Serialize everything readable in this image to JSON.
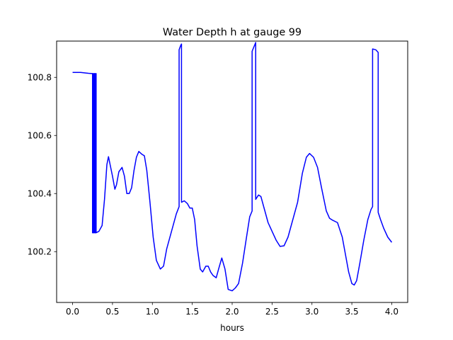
{
  "chart_data": {
    "type": "line",
    "title": "Water Depth h at gauge 99",
    "xlabel": "hours",
    "ylabel": "",
    "xlim": [
      -0.2,
      4.2
    ],
    "ylim": [
      100.025,
      100.925
    ],
    "xticks": [
      0.0,
      0.5,
      1.0,
      1.5,
      2.0,
      2.5,
      3.0,
      3.5,
      4.0
    ],
    "xtick_labels": [
      "0.0",
      "0.5",
      "1.0",
      "1.5",
      "2.0",
      "2.5",
      "3.0",
      "3.5",
      "4.0"
    ],
    "yticks": [
      100.2,
      100.4,
      100.6,
      100.8
    ],
    "ytick_labels": [
      "100.2",
      "100.4",
      "100.6",
      "100.8"
    ],
    "grid": false,
    "legend": "none",
    "series": [
      {
        "color": "#0000ff",
        "points": [
          [
            0.0,
            100.817
          ],
          [
            0.1,
            100.817
          ],
          [
            0.2,
            100.814
          ],
          [
            0.25,
            100.813
          ],
          [
            0.25,
            100.265
          ],
          [
            0.255,
            100.265
          ],
          [
            0.255,
            100.813
          ],
          [
            0.26,
            100.813
          ],
          [
            0.26,
            100.265
          ],
          [
            0.27,
            100.265
          ],
          [
            0.27,
            100.813
          ],
          [
            0.28,
            100.813
          ],
          [
            0.28,
            100.265
          ],
          [
            0.29,
            100.265
          ],
          [
            0.29,
            100.813
          ],
          [
            0.295,
            100.813
          ],
          [
            0.295,
            100.265
          ],
          [
            0.33,
            100.27
          ],
          [
            0.37,
            100.29
          ],
          [
            0.4,
            100.38
          ],
          [
            0.43,
            100.5
          ],
          [
            0.45,
            100.527
          ],
          [
            0.47,
            100.5
          ],
          [
            0.5,
            100.46
          ],
          [
            0.53,
            100.415
          ],
          [
            0.55,
            100.43
          ],
          [
            0.58,
            100.475
          ],
          [
            0.62,
            100.49
          ],
          [
            0.65,
            100.46
          ],
          [
            0.68,
            100.4
          ],
          [
            0.71,
            100.4
          ],
          [
            0.74,
            100.42
          ],
          [
            0.77,
            100.48
          ],
          [
            0.8,
            100.525
          ],
          [
            0.83,
            100.545
          ],
          [
            0.87,
            100.535
          ],
          [
            0.9,
            100.53
          ],
          [
            0.93,
            100.48
          ],
          [
            0.97,
            100.37
          ],
          [
            1.01,
            100.25
          ],
          [
            1.05,
            100.17
          ],
          [
            1.1,
            100.14
          ],
          [
            1.14,
            100.15
          ],
          [
            1.18,
            100.21
          ],
          [
            1.24,
            100.27
          ],
          [
            1.3,
            100.33
          ],
          [
            1.335,
            100.355
          ],
          [
            1.335,
            100.895
          ],
          [
            1.355,
            100.91
          ],
          [
            1.365,
            100.915
          ],
          [
            1.365,
            100.37
          ],
          [
            1.4,
            100.375
          ],
          [
            1.44,
            100.365
          ],
          [
            1.47,
            100.35
          ],
          [
            1.5,
            100.35
          ],
          [
            1.53,
            100.31
          ],
          [
            1.56,
            100.22
          ],
          [
            1.6,
            100.14
          ],
          [
            1.63,
            100.13
          ],
          [
            1.67,
            100.15
          ],
          [
            1.7,
            100.15
          ],
          [
            1.73,
            100.13
          ],
          [
            1.76,
            100.118
          ],
          [
            1.8,
            100.11
          ],
          [
            1.83,
            100.14
          ],
          [
            1.87,
            100.178
          ],
          [
            1.91,
            100.14
          ],
          [
            1.95,
            100.07
          ],
          [
            2.0,
            100.065
          ],
          [
            2.04,
            100.075
          ],
          [
            2.08,
            100.09
          ],
          [
            2.13,
            100.16
          ],
          [
            2.18,
            100.25
          ],
          [
            2.22,
            100.32
          ],
          [
            2.25,
            100.34
          ],
          [
            2.25,
            100.89
          ],
          [
            2.28,
            100.91
          ],
          [
            2.295,
            100.92
          ],
          [
            2.295,
            100.38
          ],
          [
            2.33,
            100.395
          ],
          [
            2.36,
            100.39
          ],
          [
            2.4,
            100.35
          ],
          [
            2.45,
            100.3
          ],
          [
            2.5,
            100.27
          ],
          [
            2.55,
            100.24
          ],
          [
            2.6,
            100.218
          ],
          [
            2.65,
            100.22
          ],
          [
            2.7,
            100.25
          ],
          [
            2.75,
            100.3
          ],
          [
            2.82,
            100.37
          ],
          [
            2.88,
            100.47
          ],
          [
            2.93,
            100.525
          ],
          [
            2.97,
            100.538
          ],
          [
            3.02,
            100.525
          ],
          [
            3.07,
            100.49
          ],
          [
            3.12,
            100.42
          ],
          [
            3.18,
            100.34
          ],
          [
            3.22,
            100.315
          ],
          [
            3.26,
            100.308
          ],
          [
            3.32,
            100.3
          ],
          [
            3.38,
            100.25
          ],
          [
            3.42,
            100.19
          ],
          [
            3.46,
            100.13
          ],
          [
            3.5,
            100.09
          ],
          [
            3.53,
            100.085
          ],
          [
            3.56,
            100.1
          ],
          [
            3.6,
            100.16
          ],
          [
            3.65,
            100.24
          ],
          [
            3.7,
            100.31
          ],
          [
            3.74,
            100.345
          ],
          [
            3.76,
            100.355
          ],
          [
            3.76,
            100.898
          ],
          [
            3.8,
            100.895
          ],
          [
            3.83,
            100.886
          ],
          [
            3.83,
            100.335
          ],
          [
            3.86,
            100.31
          ],
          [
            3.9,
            100.28
          ],
          [
            3.95,
            100.25
          ],
          [
            4.0,
            100.232
          ]
        ]
      }
    ]
  }
}
